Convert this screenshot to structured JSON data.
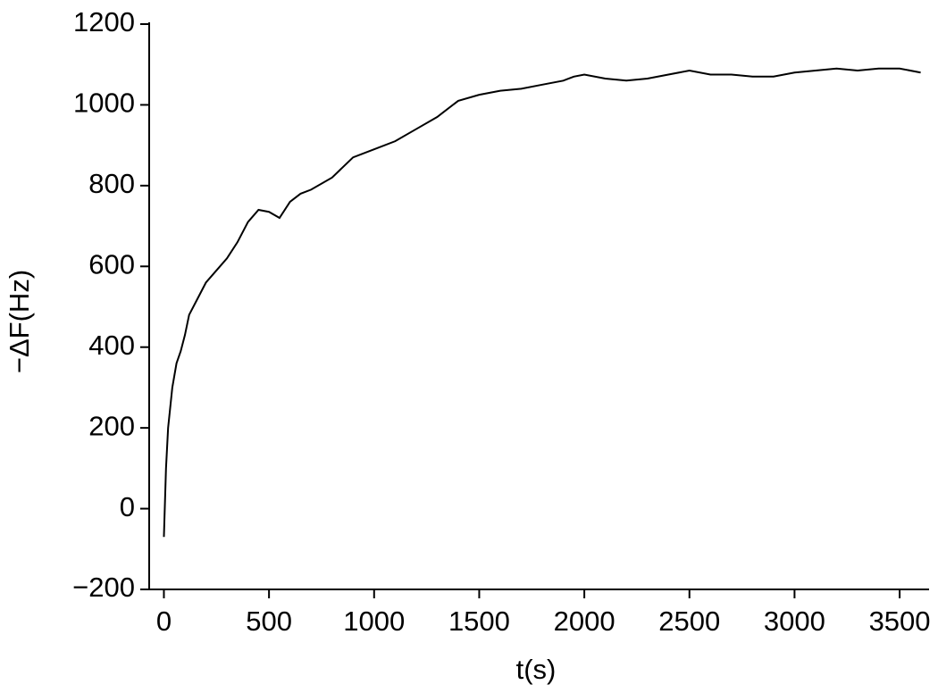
{
  "chart_data": {
    "type": "line",
    "x_label": "t(s)",
    "y_label": "−ΔF(Hz)",
    "x": [
      0,
      10,
      20,
      40,
      60,
      80,
      100,
      120,
      150,
      200,
      250,
      300,
      350,
      400,
      450,
      500,
      550,
      600,
      650,
      700,
      800,
      900,
      1000,
      1100,
      1200,
      1300,
      1400,
      1500,
      1600,
      1700,
      1800,
      1900,
      1950,
      2000,
      2100,
      2200,
      2300,
      2400,
      2500,
      2600,
      2700,
      2800,
      2900,
      3000,
      3100,
      3200,
      3300,
      3400,
      3500,
      3600
    ],
    "series": [
      {
        "name": "−ΔF",
        "color": "#000000",
        "values": [
          -70,
          100,
          200,
          300,
          360,
          390,
          430,
          480,
          510,
          560,
          590,
          620,
          660,
          710,
          740,
          735,
          720,
          760,
          780,
          790,
          820,
          870,
          890,
          910,
          940,
          970,
          1010,
          1025,
          1035,
          1040,
          1050,
          1060,
          1070,
          1075,
          1065,
          1060,
          1065,
          1075,
          1085,
          1075,
          1075,
          1070,
          1070,
          1080,
          1085,
          1090,
          1085,
          1090,
          1090,
          1080
        ]
      }
    ],
    "xlim": [
      -70,
      3640
    ],
    "ylim": [
      -200,
      1200
    ],
    "xticks": [
      0,
      500,
      1000,
      1500,
      2000,
      2500,
      3000,
      3500
    ],
    "yticks": [
      {
        "value": -200,
        "label": "−200"
      },
      0,
      200,
      400,
      600,
      800,
      1000,
      1200
    ]
  }
}
